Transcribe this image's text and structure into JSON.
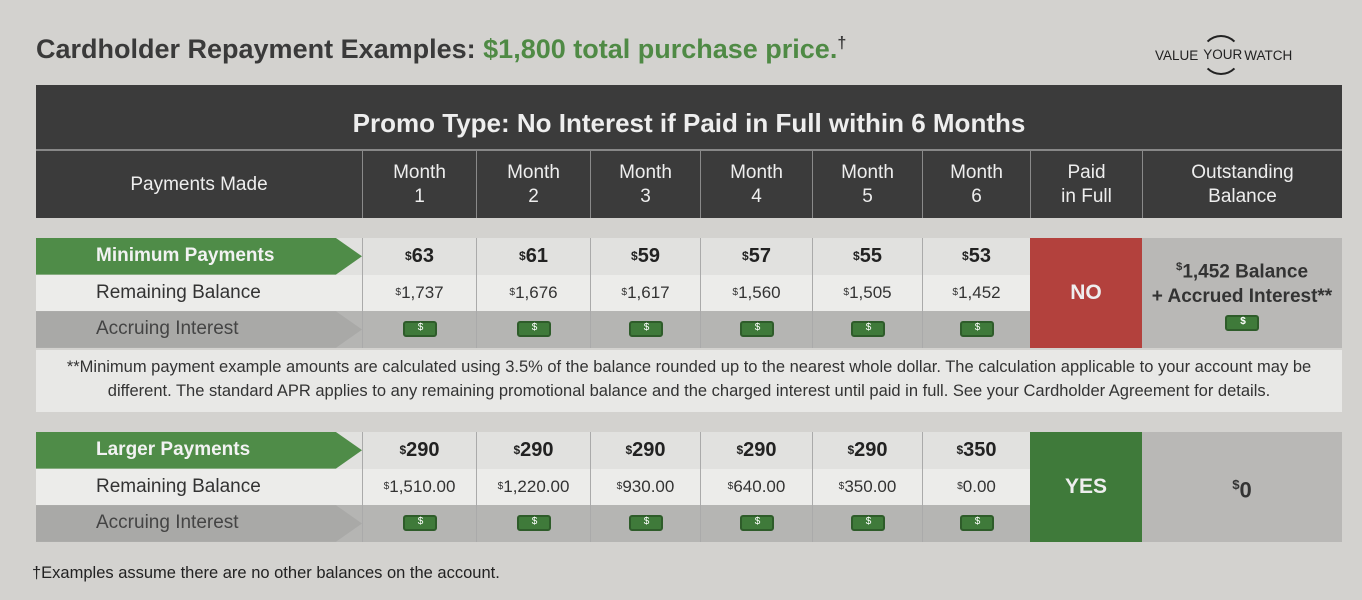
{
  "title": {
    "prefix": "Cardholder Repayment Examples:",
    "highlight": "$1,800 total purchase price.",
    "mark": "†"
  },
  "logo": {
    "left": "VALUE",
    "center": "YOUR",
    "right": "WATCH"
  },
  "promo": "Promo Type: No Interest if Paid in Full within 6 Months",
  "headers": [
    "Payments Made",
    "Month\n1",
    "Month\n2",
    "Month\n3",
    "Month\n4",
    "Month\n5",
    "Month\n6",
    "Paid\nin Full",
    "Outstanding\nBalance"
  ],
  "minimum": {
    "label": "Minimum Payments",
    "payments": [
      "63",
      "61",
      "59",
      "57",
      "55",
      "53"
    ],
    "balance_label": "Remaining Balance",
    "balances": [
      "1,737",
      "1,676",
      "1,617",
      "1,560",
      "1,505",
      "1,452"
    ],
    "interest_label": "Accruing Interest",
    "paid_in_full": "NO",
    "outstanding_line1": "1,452 Balance",
    "outstanding_line2": "+ Accrued Interest**",
    "paid_color": "#b3413d"
  },
  "note": "**Minimum payment example amounts are calculated using 3.5% of the balance rounded up to the nearest whole dollar. The calculation applicable to your account may be different. The standard APR applies to any remaining promotional balance and the charged interest until paid in full. See your Cardholder Agreement for details.",
  "larger": {
    "label": "Larger Payments",
    "payments": [
      "290",
      "290",
      "290",
      "290",
      "290",
      "350"
    ],
    "balance_label": "Remaining Balance",
    "balances": [
      "1,510.00",
      "1,220.00",
      "930.00",
      "640.00",
      "350.00",
      "0.00"
    ],
    "interest_label": "Accruing Interest",
    "paid_in_full": "YES",
    "outstanding": "0",
    "paid_color": "#3f7a3a"
  },
  "footnote": "†Examples assume there are no other balances on the account.",
  "currency": "$"
}
